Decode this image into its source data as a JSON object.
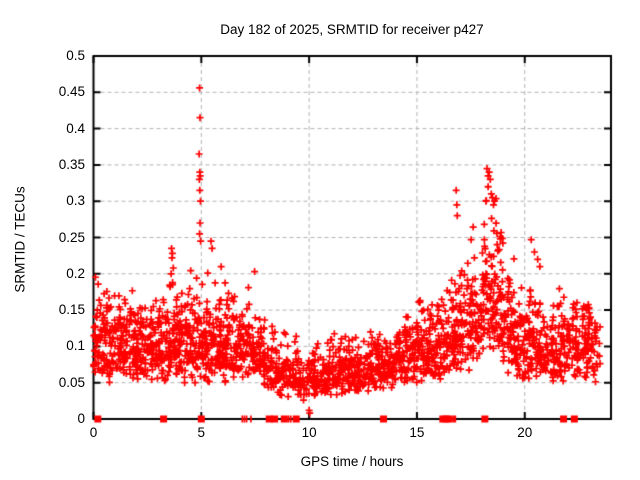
{
  "chart_data": {
    "type": "scatter",
    "title": "Day 182 of 2025, SRMTID for receiver p427",
    "xlabel": "GPS time / hours",
    "ylabel": "SRMTID / TECUs",
    "xlim": [
      0,
      24
    ],
    "ylim": [
      0,
      0.5
    ],
    "x_ticks": [
      0,
      5,
      10,
      15,
      20
    ],
    "x_tick_labels": [
      "0",
      "5",
      "10",
      "15",
      "20"
    ],
    "y_ticks": [
      0,
      0.05,
      0.1,
      0.15,
      0.2,
      0.25,
      0.3,
      0.35,
      0.4,
      0.45,
      0.5
    ],
    "y_tick_labels": [
      "0",
      "0.05",
      "0.1",
      "0.15",
      "0.2",
      "0.25",
      "0.3",
      "0.35",
      "0.4",
      "0.45",
      "0.5"
    ],
    "grid": {
      "show": true,
      "color": "#b3b3b3",
      "dash": [
        4,
        3
      ]
    },
    "axis_color": "#000000",
    "legend": "none",
    "series": [
      {
        "name": "srmtid-points",
        "marker": "plus",
        "color": "#ff0000",
        "marker_size": 7,
        "synthesized_from_density": true,
        "seed": 182,
        "bin_width_hours": 0.5,
        "sigma_log": 0.32,
        "density_bins": [
          [
            0.0,
            55,
            0.055,
            0.1,
            0.2
          ],
          [
            0.5,
            55,
            0.05,
            0.095,
            0.19
          ],
          [
            1.0,
            58,
            0.055,
            0.105,
            0.19
          ],
          [
            1.5,
            55,
            0.055,
            0.1,
            0.18
          ],
          [
            2.0,
            55,
            0.05,
            0.095,
            0.165
          ],
          [
            2.5,
            55,
            0.05,
            0.1,
            0.17
          ],
          [
            3.0,
            55,
            0.05,
            0.1,
            0.185
          ],
          [
            3.5,
            56,
            0.05,
            0.105,
            0.21
          ],
          [
            4.0,
            55,
            0.05,
            0.105,
            0.185
          ],
          [
            4.5,
            55,
            0.05,
            0.1,
            0.21
          ],
          [
            5.0,
            55,
            0.05,
            0.1,
            0.22
          ],
          [
            5.5,
            55,
            0.05,
            0.1,
            0.225
          ],
          [
            6.0,
            55,
            0.05,
            0.105,
            0.21
          ],
          [
            6.5,
            50,
            0.045,
            0.1,
            0.185
          ],
          [
            7.0,
            45,
            0.04,
            0.095,
            0.21
          ],
          [
            7.5,
            48,
            0.04,
            0.085,
            0.165
          ],
          [
            8.0,
            40,
            0.035,
            0.075,
            0.14
          ],
          [
            8.5,
            38,
            0.03,
            0.065,
            0.13
          ],
          [
            9.0,
            38,
            0.03,
            0.06,
            0.12
          ],
          [
            9.5,
            40,
            0.025,
            0.055,
            0.11
          ],
          [
            10.0,
            42,
            0.03,
            0.055,
            0.12
          ],
          [
            10.5,
            45,
            0.03,
            0.06,
            0.13
          ],
          [
            11.0,
            45,
            0.03,
            0.065,
            0.14
          ],
          [
            11.5,
            45,
            0.03,
            0.06,
            0.125
          ],
          [
            12.0,
            45,
            0.03,
            0.065,
            0.12
          ],
          [
            12.5,
            45,
            0.035,
            0.07,
            0.13
          ],
          [
            13.0,
            45,
            0.04,
            0.07,
            0.125
          ],
          [
            13.5,
            45,
            0.04,
            0.075,
            0.135
          ],
          [
            14.0,
            48,
            0.05,
            0.085,
            0.15
          ],
          [
            14.5,
            48,
            0.05,
            0.09,
            0.15
          ],
          [
            15.0,
            50,
            0.05,
            0.095,
            0.165
          ],
          [
            15.5,
            50,
            0.055,
            0.1,
            0.17
          ],
          [
            16.0,
            50,
            0.055,
            0.105,
            0.18
          ],
          [
            16.5,
            50,
            0.06,
            0.115,
            0.22
          ],
          [
            17.0,
            52,
            0.06,
            0.125,
            0.24
          ],
          [
            17.5,
            55,
            0.07,
            0.145,
            0.28
          ],
          [
            18.0,
            60,
            0.08,
            0.175,
            0.33
          ],
          [
            18.5,
            60,
            0.075,
            0.165,
            0.32
          ],
          [
            19.0,
            52,
            0.06,
            0.125,
            0.25
          ],
          [
            19.5,
            50,
            0.055,
            0.11,
            0.19
          ],
          [
            20.0,
            50,
            0.055,
            0.105,
            0.21
          ],
          [
            20.5,
            50,
            0.05,
            0.1,
            0.2
          ],
          [
            21.0,
            48,
            0.05,
            0.09,
            0.16
          ],
          [
            21.5,
            48,
            0.05,
            0.1,
            0.18
          ],
          [
            22.0,
            50,
            0.055,
            0.11,
            0.17
          ],
          [
            22.5,
            50,
            0.055,
            0.11,
            0.165
          ],
          [
            23.0,
            34,
            0.05,
            0.1,
            0.15
          ],
          [
            23.5,
            0,
            0,
            0,
            0
          ]
        ],
        "outlier_points": [
          [
            3.6,
            0.2
          ],
          [
            3.62,
            0.235
          ],
          [
            3.64,
            0.222
          ],
          [
            3.66,
            0.228
          ],
          [
            3.7,
            0.208
          ],
          [
            4.9,
            0.365
          ],
          [
            4.91,
            0.33
          ],
          [
            4.92,
            0.456
          ],
          [
            4.92,
            0.255
          ],
          [
            4.93,
            0.34
          ],
          [
            4.93,
            0.315
          ],
          [
            4.94,
            0.415
          ],
          [
            4.94,
            0.27
          ],
          [
            4.95,
            0.335
          ],
          [
            4.96,
            0.3
          ],
          [
            4.97,
            0.245
          ],
          [
            5.45,
            0.245
          ],
          [
            5.5,
            0.235
          ],
          [
            16.82,
            0.315
          ],
          [
            16.85,
            0.295
          ],
          [
            16.87,
            0.28
          ],
          [
            18.2,
            0.3
          ],
          [
            18.25,
            0.345
          ],
          [
            18.3,
            0.335
          ],
          [
            18.3,
            0.32
          ],
          [
            18.35,
            0.34
          ],
          [
            18.4,
            0.33
          ],
          [
            18.45,
            0.31
          ],
          [
            18.5,
            0.305
          ],
          [
            18.55,
            0.295
          ],
          [
            18.6,
            0.3
          ],
          [
            20.3,
            0.247
          ],
          [
            20.45,
            0.23
          ],
          [
            20.6,
            0.22
          ],
          [
            20.7,
            0.21
          ],
          [
            10.0,
            0.012
          ],
          [
            10.03,
            0.008
          ]
        ]
      },
      {
        "name": "flags-at-zero",
        "marker": "filled-square",
        "color": "#ff0000",
        "y": 0,
        "square_size": 7,
        "square_x_hours": [
          0.2,
          3.25,
          5.0,
          8.15,
          8.4,
          8.85,
          9.4,
          13.45,
          16.2,
          16.35,
          16.5,
          18.15,
          21.8,
          22.3
        ],
        "tick_x_hours": [
          6.9,
          7.0,
          7.1,
          7.3,
          9.05,
          9.15,
          16.7,
          16.78
        ]
      }
    ]
  }
}
